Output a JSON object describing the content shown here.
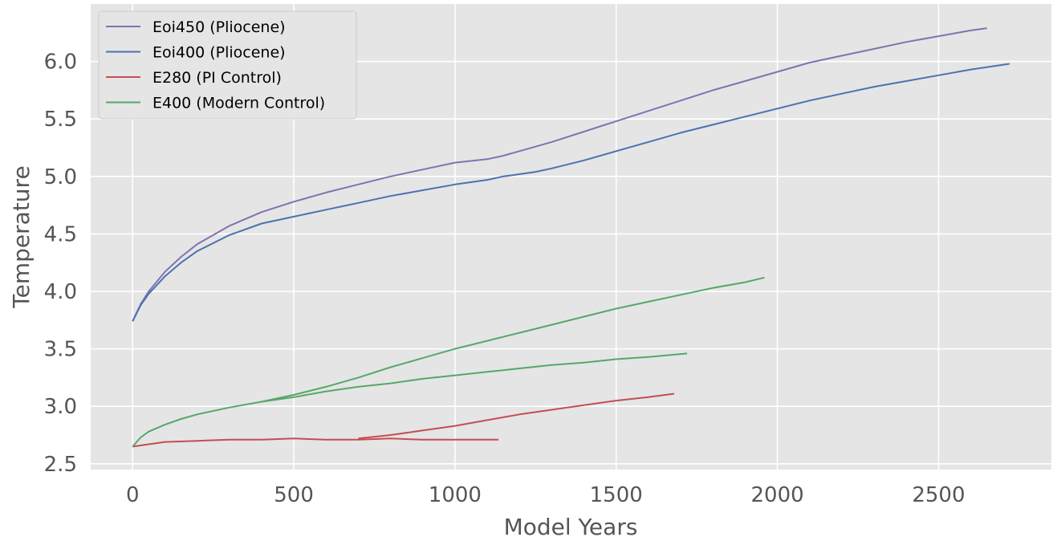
{
  "chart_data": {
    "type": "line",
    "title": "",
    "xlabel": "Model Years",
    "ylabel": "Temperature",
    "xlim": [
      -130,
      2850
    ],
    "ylim": [
      2.45,
      6.5
    ],
    "x_ticks": [
      0,
      500,
      1000,
      1500,
      2000,
      2500
    ],
    "x_tick_labels": [
      "0",
      "500",
      "1000",
      "1500",
      "2000",
      "2500"
    ],
    "y_ticks": [
      2.5,
      3.0,
      3.5,
      4.0,
      4.5,
      5.0,
      5.5,
      6.0
    ],
    "y_tick_labels": [
      "2.5",
      "3.0",
      "3.5",
      "4.0",
      "4.5",
      "5.0",
      "5.5",
      "6.0"
    ],
    "grid": true,
    "legend_position": "top-left",
    "legend": [
      {
        "label": "Eoi450 (Pliocene)",
        "color": "#8172b2"
      },
      {
        "label": "Eoi400 (Pliocene)",
        "color": "#4c72b0"
      },
      {
        "label": "E280 (PI Control)",
        "color": "#c44e52"
      },
      {
        "label": "E400 (Modern Control)",
        "color": "#55a868"
      }
    ],
    "series": [
      {
        "color": "#8172b2",
        "x": [
          0,
          25,
          50,
          100,
          150,
          200,
          300,
          400,
          500,
          600,
          700,
          800,
          900,
          1000,
          1100,
          1150,
          1200,
          1300,
          1400,
          1500,
          1600,
          1700,
          1800,
          1900,
          2000,
          2100,
          2200,
          2300,
          2400,
          2500,
          2600,
          2650
        ],
        "y": [
          3.74,
          3.89,
          4.0,
          4.17,
          4.3,
          4.41,
          4.57,
          4.69,
          4.78,
          4.86,
          4.93,
          5.0,
          5.06,
          5.12,
          5.15,
          5.18,
          5.22,
          5.3,
          5.39,
          5.48,
          5.57,
          5.66,
          5.75,
          5.83,
          5.91,
          5.99,
          6.05,
          6.11,
          6.17,
          6.22,
          6.27,
          6.29
        ]
      },
      {
        "color": "#4c72b0",
        "x": [
          0,
          25,
          50,
          100,
          150,
          200,
          300,
          400,
          500,
          600,
          700,
          800,
          900,
          1000,
          1100,
          1150,
          1200,
          1250,
          1300,
          1400,
          1500,
          1600,
          1700,
          1800,
          1900,
          2000,
          2100,
          2200,
          2300,
          2400,
          2500,
          2600,
          2720
        ],
        "y": [
          3.74,
          3.88,
          3.98,
          4.13,
          4.25,
          4.35,
          4.49,
          4.59,
          4.65,
          4.71,
          4.77,
          4.83,
          4.88,
          4.93,
          4.97,
          5.0,
          5.02,
          5.04,
          5.07,
          5.14,
          5.22,
          5.3,
          5.38,
          5.45,
          5.52,
          5.59,
          5.66,
          5.72,
          5.78,
          5.83,
          5.88,
          5.93,
          5.98
        ]
      },
      {
        "color": "#c44e52",
        "x": [
          0,
          50,
          100,
          200,
          300,
          400,
          500,
          600,
          700,
          800,
          900,
          1000,
          1100,
          1135
        ],
        "y": [
          2.65,
          2.67,
          2.69,
          2.7,
          2.71,
          2.71,
          2.72,
          2.71,
          2.71,
          2.72,
          2.71,
          2.71,
          2.71,
          2.71
        ]
      },
      {
        "color": "#c44e52",
        "x": [
          700,
          800,
          900,
          1000,
          1100,
          1200,
          1300,
          1400,
          1500,
          1600,
          1680
        ],
        "y": [
          2.72,
          2.75,
          2.79,
          2.83,
          2.88,
          2.93,
          2.97,
          3.01,
          3.05,
          3.08,
          3.11
        ]
      },
      {
        "color": "#55a868",
        "x": [
          0,
          25,
          50,
          100,
          150,
          200,
          300,
          400,
          500,
          600,
          700,
          800,
          900,
          1000,
          1100,
          1200,
          1300,
          1400,
          1500,
          1600,
          1720
        ],
        "y": [
          2.65,
          2.73,
          2.78,
          2.84,
          2.89,
          2.93,
          2.99,
          3.04,
          3.08,
          3.13,
          3.17,
          3.2,
          3.24,
          3.27,
          3.3,
          3.33,
          3.36,
          3.38,
          3.41,
          3.43,
          3.46
        ]
      },
      {
        "color": "#55a868",
        "x": [
          400,
          500,
          600,
          700,
          800,
          900,
          1000,
          1100,
          1200,
          1300,
          1400,
          1500,
          1600,
          1700,
          1800,
          1900,
          1960
        ],
        "y": [
          3.04,
          3.1,
          3.17,
          3.25,
          3.34,
          3.42,
          3.5,
          3.57,
          3.64,
          3.71,
          3.78,
          3.85,
          3.91,
          3.97,
          4.03,
          4.08,
          4.12
        ]
      }
    ]
  }
}
